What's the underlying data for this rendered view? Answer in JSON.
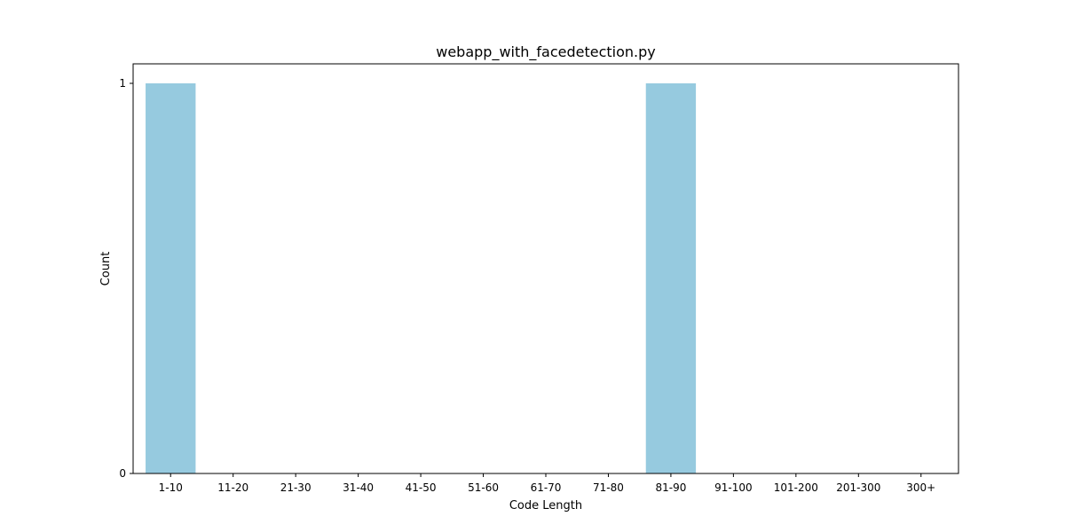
{
  "chart_data": {
    "type": "bar",
    "title": "webapp_with_facedetection.py",
    "xlabel": "Code Length",
    "ylabel": "Count",
    "categories": [
      "1-10",
      "11-20",
      "21-30",
      "31-40",
      "41-50",
      "51-60",
      "61-70",
      "71-80",
      "81-90",
      "91-100",
      "101-200",
      "201-300",
      "300+"
    ],
    "values": [
      1,
      0,
      0,
      0,
      0,
      0,
      0,
      0,
      1,
      0,
      0,
      0,
      0
    ],
    "ylim": [
      0,
      1
    ],
    "yticks": [
      0,
      1
    ],
    "bar_color": "#96cadf",
    "grid": false,
    "legend": "none"
  }
}
